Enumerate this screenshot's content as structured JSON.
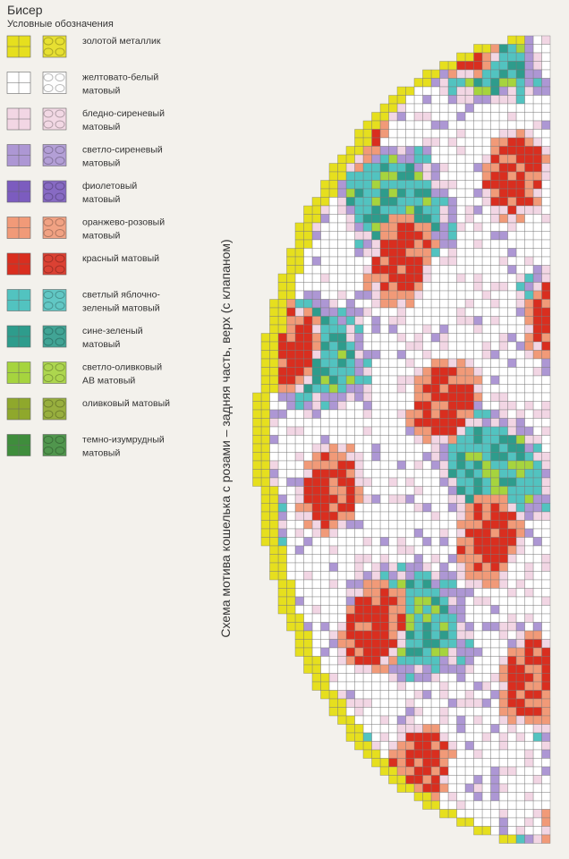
{
  "header": {
    "title": "Бисер",
    "subtitle": "Условные обозначения"
  },
  "legend": [
    {
      "lines": [
        "золотой металлик"
      ],
      "color": "#e6df1e"
    },
    {
      "lines": [
        "желтовато-белый",
        "матовый"
      ],
      "color": "#ffffff"
    },
    {
      "lines": [
        "бледно-сиреневый",
        "матовый"
      ],
      "color": "#f2d6e4"
    },
    {
      "lines": [
        "светло-сиреневый",
        "матовый"
      ],
      "color": "#ad97d4"
    },
    {
      "lines": [
        "фиолетовый",
        "матовый"
      ],
      "color": "#7c5cbf"
    },
    {
      "lines": [
        "оранжево-розовый",
        "матовый"
      ],
      "color": "#f19a78"
    },
    {
      "lines": [
        "красный матовый"
      ],
      "color": "#d92e1f"
    },
    {
      "lines": [
        "светлый яблочно-",
        "зеленый матовый"
      ],
      "color": "#52c3c0"
    },
    {
      "lines": [
        "сине-зеленый",
        "матовый"
      ],
      "color": "#2e9c8c"
    },
    {
      "lines": [
        "светло-оливковый",
        "АВ матовый"
      ],
      "color": "#a6d43e"
    },
    {
      "lines": [
        "оливковый матовый"
      ],
      "color": "#8fa82c"
    },
    {
      "lines": [
        "темно-изумрудный",
        "матовый"
      ],
      "color": "#3f8d3c"
    }
  ],
  "caption": "Схема мотива кошелька с розами – задняя часть, верх (с клапаном)"
}
